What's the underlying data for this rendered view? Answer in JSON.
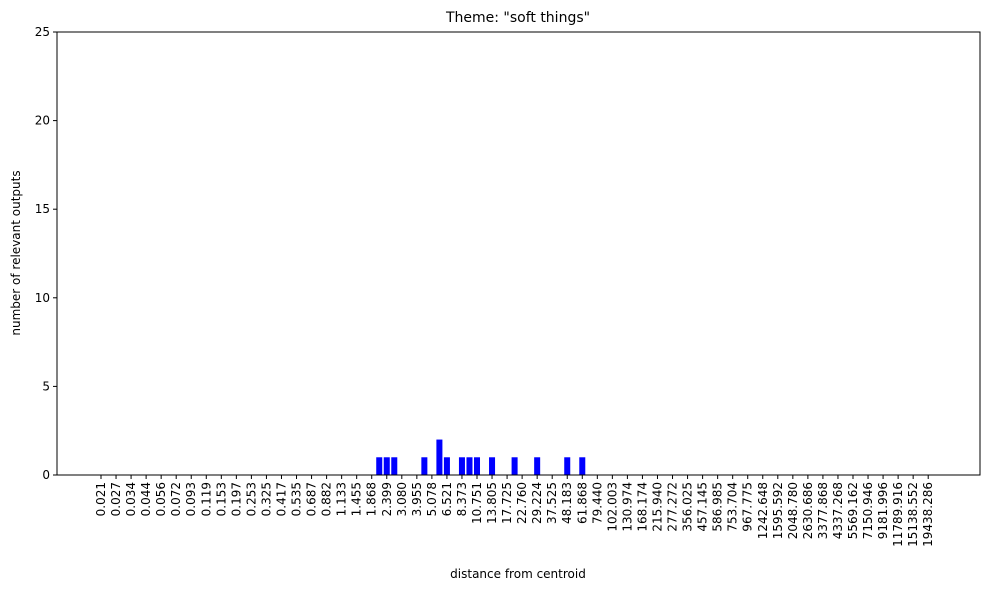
{
  "chart_data": {
    "type": "bar",
    "title": "Theme: \"soft things\"",
    "xlabel": "distance from centroid",
    "ylabel": "number of relevant outputs",
    "categories": [
      "0.021",
      null,
      "0.027",
      null,
      "0.034",
      null,
      "0.044",
      null,
      "0.056",
      null,
      "0.072",
      null,
      "0.093",
      null,
      "0.119",
      null,
      "0.153",
      null,
      "0.197",
      null,
      "0.253",
      null,
      "0.325",
      null,
      "0.417",
      null,
      "0.535",
      null,
      "0.687",
      null,
      "0.882",
      null,
      "1.133",
      null,
      "1.455",
      null,
      "1.868",
      null,
      "2.399",
      null,
      "3.080",
      null,
      "3.955",
      null,
      "5.078",
      null,
      "6.521",
      null,
      "8.373",
      null,
      "10.751",
      null,
      "13.805",
      null,
      "17.725",
      null,
      "22.760",
      null,
      "29.224",
      null,
      "37.525",
      null,
      "48.183",
      null,
      "61.868",
      null,
      "79.440",
      null,
      "102.003",
      null,
      "130.974",
      null,
      "168.174",
      null,
      "215.940",
      null,
      "277.272",
      null,
      "356.025",
      null,
      "457.145",
      null,
      "586.985",
      null,
      "753.704",
      null,
      "967.775",
      null,
      "1242.648",
      null,
      "1595.592",
      null,
      "2048.780",
      null,
      "2630.686",
      null,
      "3377.868",
      null,
      "4337.268",
      null,
      "5569.162",
      null,
      "7150.946",
      null,
      "9181.996",
      null,
      "11789.916",
      null,
      "15138.552",
      null,
      "19438.286"
    ],
    "values": [
      0,
      0,
      0,
      0,
      0,
      0,
      0,
      0,
      0,
      0,
      0,
      0,
      0,
      0,
      0,
      0,
      0,
      0,
      0,
      0,
      0,
      0,
      0,
      0,
      0,
      0,
      0,
      0,
      0,
      0,
      0,
      0,
      0,
      0,
      0,
      0,
      0,
      1,
      1,
      1,
      0,
      0,
      0,
      1,
      0,
      2,
      1,
      0,
      1,
      1,
      1,
      0,
      1,
      0,
      0,
      1,
      0,
      0,
      1,
      0,
      0,
      0,
      1,
      0,
      1,
      0,
      0,
      0,
      0,
      0,
      0,
      0,
      0,
      0,
      0,
      0,
      0,
      0,
      0,
      0,
      0,
      0,
      0,
      0,
      0,
      0,
      0,
      0,
      0,
      0,
      0,
      0,
      0,
      0,
      0,
      0,
      0,
      0,
      0,
      0,
      0,
      0,
      0,
      0,
      0,
      0,
      0,
      0,
      0,
      0,
      0
    ],
    "color": "#0000ff",
    "ylim": [
      0,
      25
    ],
    "yticks": [
      0,
      5,
      10,
      15,
      20,
      25
    ]
  }
}
